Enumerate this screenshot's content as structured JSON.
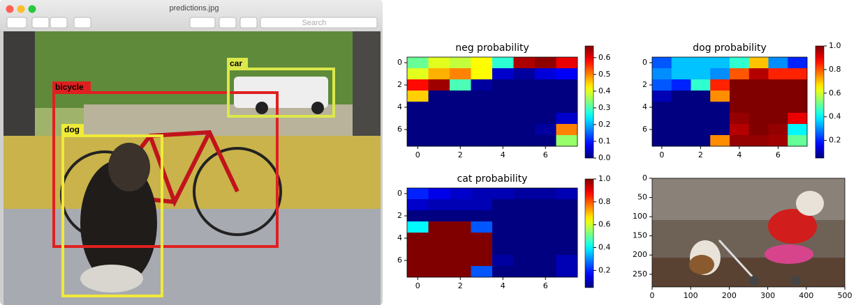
{
  "window": {
    "title": "predictions.jpg",
    "search": "Search"
  },
  "detections": [
    {
      "label": "car"
    },
    {
      "label": "bicycle"
    },
    {
      "label": "dog"
    }
  ],
  "chart_data": [
    {
      "type": "heatmap",
      "title": "neg probability",
      "colormap": "jet",
      "values": [
        [
          0.32,
          0.4,
          0.38,
          0.42,
          0.28,
          0.64,
          0.66,
          0.6
        ],
        [
          0.4,
          0.47,
          0.5,
          0.42,
          0.05,
          0.02,
          0.06,
          0.08
        ],
        [
          0.58,
          0.65,
          0.3,
          0.02,
          0,
          0,
          0,
          0
        ],
        [
          0.45,
          0,
          0,
          0,
          0,
          0,
          0,
          0
        ],
        [
          0,
          0,
          0,
          0,
          0,
          0,
          0,
          0
        ],
        [
          0,
          0,
          0,
          0,
          0,
          0,
          0,
          0.05
        ],
        [
          0,
          0,
          0,
          0,
          0,
          0,
          0.02,
          0.5
        ],
        [
          0,
          0,
          0,
          0,
          0,
          0,
          0,
          0.35
        ]
      ],
      "xlim": [
        -0.5,
        7.5
      ],
      "ylim": [
        7.5,
        -0.5
      ],
      "xticks": [
        0,
        2,
        4,
        6
      ],
      "yticks": [
        0,
        2,
        4,
        6
      ],
      "clim": [
        0,
        0.67
      ],
      "cticks": [
        {
          "value": 0,
          "label": "0.0"
        },
        0.1,
        0.2,
        0.3,
        0.4,
        0.5,
        0.6
      ]
    },
    {
      "type": "heatmap",
      "title": "dog probability",
      "colormap": "jet",
      "values": [
        [
          0.25,
          0.35,
          0.35,
          0.35,
          0.45,
          0.7,
          0.3,
          0.2
        ],
        [
          0.3,
          0.35,
          0.35,
          0.3,
          0.8,
          0.95,
          0.85,
          0.85
        ],
        [
          0.25,
          0.2,
          0.45,
          0.85,
          1,
          1,
          1,
          1
        ],
        [
          0.1,
          0.05,
          0.05,
          0.75,
          1,
          1,
          1,
          1
        ],
        [
          0.05,
          0.05,
          0.05,
          0.05,
          1,
          1,
          1,
          1
        ],
        [
          0.05,
          0.05,
          0.05,
          0.05,
          0.98,
          1,
          1,
          0.9
        ],
        [
          0.05,
          0.05,
          0.05,
          0.05,
          0.95,
          1,
          0.98,
          0.4
        ],
        [
          0.05,
          0.05,
          0.05,
          0.75,
          0.98,
          0.98,
          0.97,
          0.5
        ]
      ],
      "xlim": [
        -0.5,
        7.5
      ],
      "ylim": [
        7.5,
        -0.5
      ],
      "xticks": [
        0,
        2,
        4,
        6
      ],
      "yticks": [
        0,
        2,
        4,
        6
      ],
      "clim": [
        0.05,
        1
      ],
      "cticks": [
        0.2,
        0.4,
        0.6,
        0.8,
        {
          "value": 1,
          "label": "1.0"
        }
      ]
    },
    {
      "type": "heatmap",
      "title": "cat probability",
      "colormap": "jet",
      "values": [
        [
          0.2,
          0.15,
          0.12,
          0.1,
          0.1,
          0.08,
          0.08,
          0.1
        ],
        [
          0.12,
          0.1,
          0.1,
          0.1,
          0.05,
          0.05,
          0.05,
          0.05
        ],
        [
          0.05,
          0.05,
          0.05,
          0.05,
          0.05,
          0.05,
          0.05,
          0.05
        ],
        [
          0.4,
          1,
          1,
          0.25,
          0.05,
          0.05,
          0.05,
          0.05
        ],
        [
          1,
          1,
          1,
          1,
          0.05,
          0.05,
          0.05,
          0.05
        ],
        [
          1,
          1,
          1,
          1,
          0.05,
          0.05,
          0.05,
          0.05
        ],
        [
          1,
          1,
          1,
          1,
          0.08,
          0.05,
          0.05,
          0.1
        ],
        [
          1,
          1,
          1,
          0.25,
          0.05,
          0.05,
          0.05,
          0.1
        ]
      ],
      "xlim": [
        -0.5,
        7.5
      ],
      "ylim": [
        7.5,
        -0.5
      ],
      "xticks": [
        0,
        2,
        4,
        6
      ],
      "yticks": [
        0,
        2,
        4,
        6
      ],
      "clim": [
        0.05,
        1
      ],
      "cticks": [
        0.2,
        0.4,
        0.6,
        0.8,
        {
          "value": 1,
          "label": "1.0"
        }
      ]
    },
    {
      "type": "image",
      "xlim": [
        0,
        500
      ],
      "ylim": [
        283,
        0
      ],
      "xticks": [
        0,
        100,
        200,
        300,
        400,
        500
      ],
      "yticks": [
        0,
        50,
        100,
        150,
        200,
        250
      ]
    }
  ]
}
